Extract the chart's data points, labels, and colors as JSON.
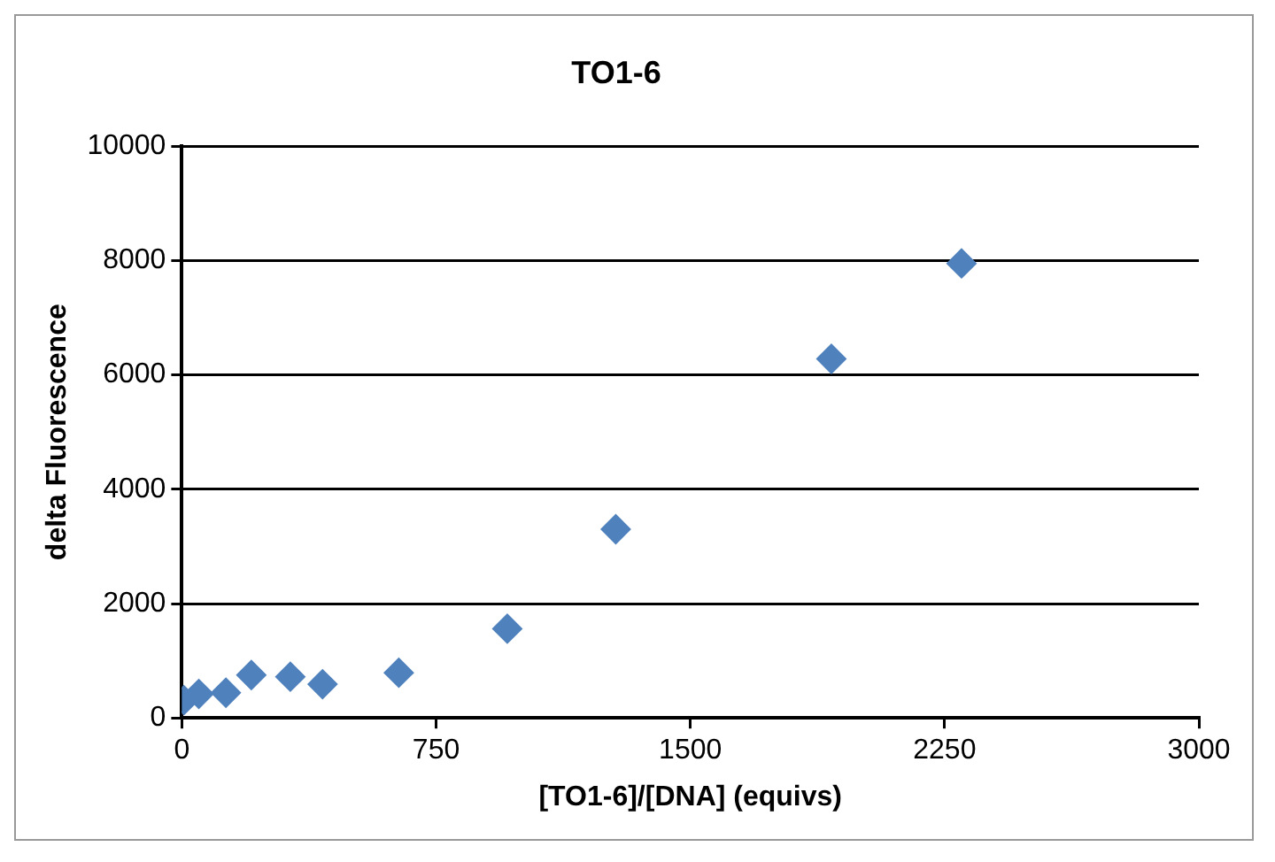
{
  "chart_data": {
    "type": "scatter",
    "title": "TO1-6",
    "xlabel": "[TO1-6]/[DNA] (equivs)",
    "ylabel": "delta Fluorescence",
    "x": [
      6,
      50,
      130,
      205,
      320,
      415,
      640,
      960,
      1280,
      1916,
      2300
    ],
    "series": [
      {
        "color": "#4f81bd",
        "values": [
          310,
          420,
          440,
          750,
          720,
          590,
          790,
          1560,
          3300,
          6280,
          7950
        ]
      }
    ],
    "xlim": [
      0,
      3000
    ],
    "xticks": [
      0,
      750,
      1500,
      2250,
      3000
    ],
    "ylim": [
      0,
      10000
    ],
    "yticks": [
      0,
      2000,
      4000,
      6000,
      8000,
      10000
    ],
    "grid": "y",
    "legend": false,
    "marker": "diamond"
  }
}
